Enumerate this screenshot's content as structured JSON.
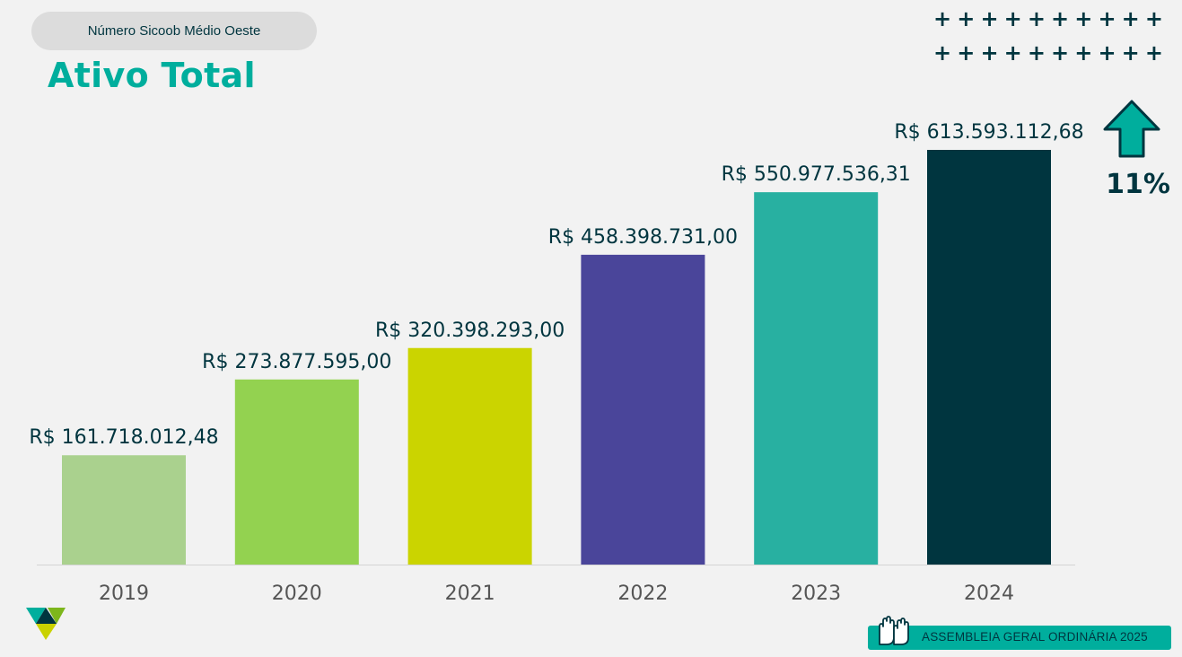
{
  "header": {
    "badge": "Número Sicoob Médio Oeste",
    "title": "Ativo Total"
  },
  "decor": {
    "plus_symbol": "+",
    "plus_icon": "plus-grid-icon"
  },
  "growth": {
    "value": "11%",
    "icon": "up-arrow-icon"
  },
  "footer": {
    "text": "ASSEMBLEIA GERAL ORDINÁRIA 2025",
    "icon": "raised-hands-icon"
  },
  "colors": {
    "background": "#f2f2f2",
    "accent": "#00ae9d",
    "dark": "#00353f"
  },
  "chart_data": {
    "type": "bar",
    "title": "",
    "xlabel": "",
    "ylabel": "",
    "categories": [
      "2019",
      "2020",
      "2021",
      "2022",
      "2023",
      "2024"
    ],
    "values": [
      161718012.48,
      273877595.0,
      320398293.0,
      458398731.0,
      550977536.31,
      613593112.68
    ],
    "labels": [
      "R$ 161.718.012,48",
      "R$ 273.877.595,00",
      "R$ 320.398.293,00",
      "R$ 458.398.731,00",
      "R$ 550.977.536,31",
      "R$ 613.593.112,68"
    ],
    "colors": [
      "#aad18e",
      "#93d250",
      "#cbd400",
      "#4a459a",
      "#28b0a1",
      "#00353f"
    ],
    "ylim": [
      0,
      613593112.68
    ],
    "grid": false,
    "legend": "none"
  }
}
